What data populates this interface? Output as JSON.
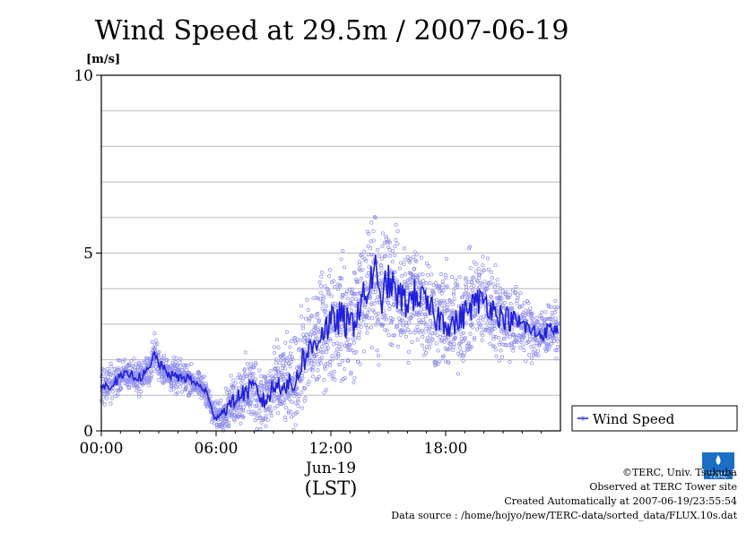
{
  "chart_data": {
    "type": "scatter",
    "title": "Wind Speed at 29.5m / 2007-06-19",
    "y_unit": "[m/s]",
    "ylim": [
      0,
      10
    ],
    "y_ticks": [
      {
        "value": 0,
        "label": "0"
      },
      {
        "value": 5,
        "label": "5"
      },
      {
        "value": 10,
        "label": "10"
      }
    ],
    "xlim_hours": [
      0,
      24
    ],
    "x_ticks": [
      {
        "hour": 0,
        "label": "00:00"
      },
      {
        "hour": 6,
        "label": "06:00"
      },
      {
        "hour": 12,
        "label": "12:00"
      },
      {
        "hour": 18,
        "label": "18:00"
      }
    ],
    "x_sublabel": "Jun-19",
    "xlabel": "(LST)",
    "grid": true,
    "legend_position": "right",
    "series": [
      {
        "name": "Wind Speed",
        "line_color": "#1f1fe0",
        "point_color": "#8a8aee",
        "x_hours": [
          0,
          0.5,
          1,
          1.5,
          2,
          2.5,
          2.8,
          3,
          3.5,
          4,
          4.5,
          5,
          5.3,
          5.5,
          5.8,
          6,
          6.5,
          7,
          7.5,
          8,
          8.5,
          9,
          9.5,
          10,
          10.5,
          11,
          11.5,
          12,
          12.5,
          13,
          13.5,
          14,
          14.3,
          14.5,
          15,
          15.5,
          16,
          16.5,
          17,
          17.5,
          18,
          18.5,
          19,
          19.5,
          20,
          20.5,
          21,
          21.5,
          22,
          22.5,
          23,
          23.5,
          23.9
        ],
        "y": [
          1.2,
          1.3,
          1.5,
          1.6,
          1.5,
          1.7,
          2.2,
          1.9,
          1.6,
          1.5,
          1.5,
          1.3,
          1.2,
          1.1,
          0.5,
          0.4,
          0.6,
          0.9,
          1.1,
          1.2,
          0.8,
          1.2,
          1.4,
          1.2,
          2.0,
          2.3,
          2.8,
          3.0,
          3.2,
          2.9,
          3.5,
          4.0,
          4.7,
          3.6,
          4.2,
          3.8,
          3.6,
          3.9,
          3.5,
          3.2,
          3.1,
          3.0,
          3.3,
          3.6,
          3.7,
          3.4,
          3.2,
          3.1,
          3.0,
          2.8,
          2.7,
          2.9,
          2.8
        ],
        "spread": [
          0.5,
          0.5,
          0.5,
          0.5,
          0.5,
          0.5,
          0.6,
          0.5,
          0.5,
          0.5,
          0.5,
          0.4,
          0.4,
          0.4,
          0.4,
          0.4,
          0.6,
          0.8,
          1.0,
          1.1,
          1.0,
          1.2,
          1.3,
          1.3,
          1.5,
          1.6,
          1.7,
          1.8,
          1.8,
          1.8,
          1.8,
          1.9,
          1.9,
          1.9,
          1.9,
          1.8,
          1.8,
          1.7,
          1.7,
          1.6,
          1.6,
          1.5,
          1.5,
          1.5,
          1.4,
          1.4,
          1.3,
          1.2,
          1.0,
          0.9,
          0.8,
          0.7,
          0.7
        ]
      }
    ]
  },
  "credits": {
    "copyright": "©TERC, Univ. Tsukuba",
    "site": "Observed at TERC Tower site",
    "created": "Created Automatically at 2007-06-19/23:55:54",
    "source": "Data source : /home/hojyo/new/TERC-data/sorted_data/FLUX.10s.dat"
  },
  "logo": {
    "name": "terc-logo",
    "text": "TERC"
  }
}
